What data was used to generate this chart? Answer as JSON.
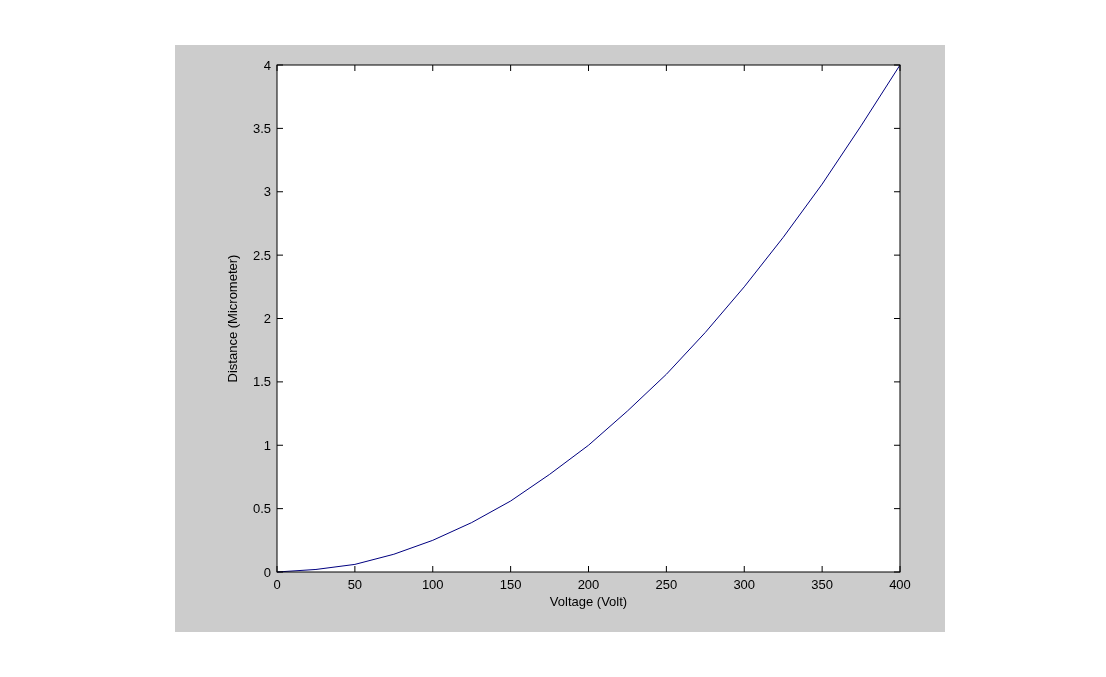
{
  "chart_data": {
    "type": "line",
    "xlabel": "Voltage (Volt)",
    "ylabel": "Distance (Micrometer)",
    "x": [
      0,
      25,
      50,
      75,
      100,
      125,
      150,
      175,
      200,
      225,
      250,
      275,
      300,
      325,
      350,
      375,
      400
    ],
    "series": [
      {
        "color": "#000080",
        "values": [
          0,
          0.02,
          0.06,
          0.14,
          0.25,
          0.39,
          0.56,
          0.77,
          1.0,
          1.27,
          1.56,
          1.89,
          2.25,
          2.64,
          3.06,
          3.52,
          4.0
        ]
      }
    ],
    "xlim": [
      0,
      400
    ],
    "xticks": [
      0,
      50,
      100,
      150,
      200,
      250,
      300,
      350,
      400
    ],
    "ylim": [
      0,
      4
    ],
    "yticks": [
      0,
      0.5,
      1,
      1.5,
      2,
      2.5,
      3,
      3.5,
      4
    ],
    "grid": false,
    "marker": "none",
    "line_style": "solid"
  }
}
